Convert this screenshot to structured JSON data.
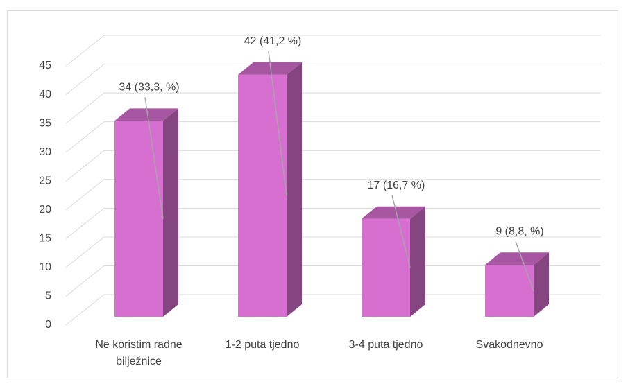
{
  "chart_data": {
    "type": "bar3d",
    "categories": [
      "Ne koristim radne bilježnice",
      "1-2 puta tjedno",
      "3-4 puta tjedno",
      "Svakodnevno"
    ],
    "values": [
      34,
      42,
      17,
      9
    ],
    "value_labels": [
      "34 (33,3, %)",
      "42 (41,2 %)",
      "17 (16,7 %)",
      "9 (8,8, %)"
    ],
    "color": "#d66fcf",
    "ylim": [
      0,
      45
    ],
    "yticks": [
      0,
      5,
      10,
      15,
      20,
      25,
      30,
      35,
      40,
      45
    ],
    "grid": true
  }
}
